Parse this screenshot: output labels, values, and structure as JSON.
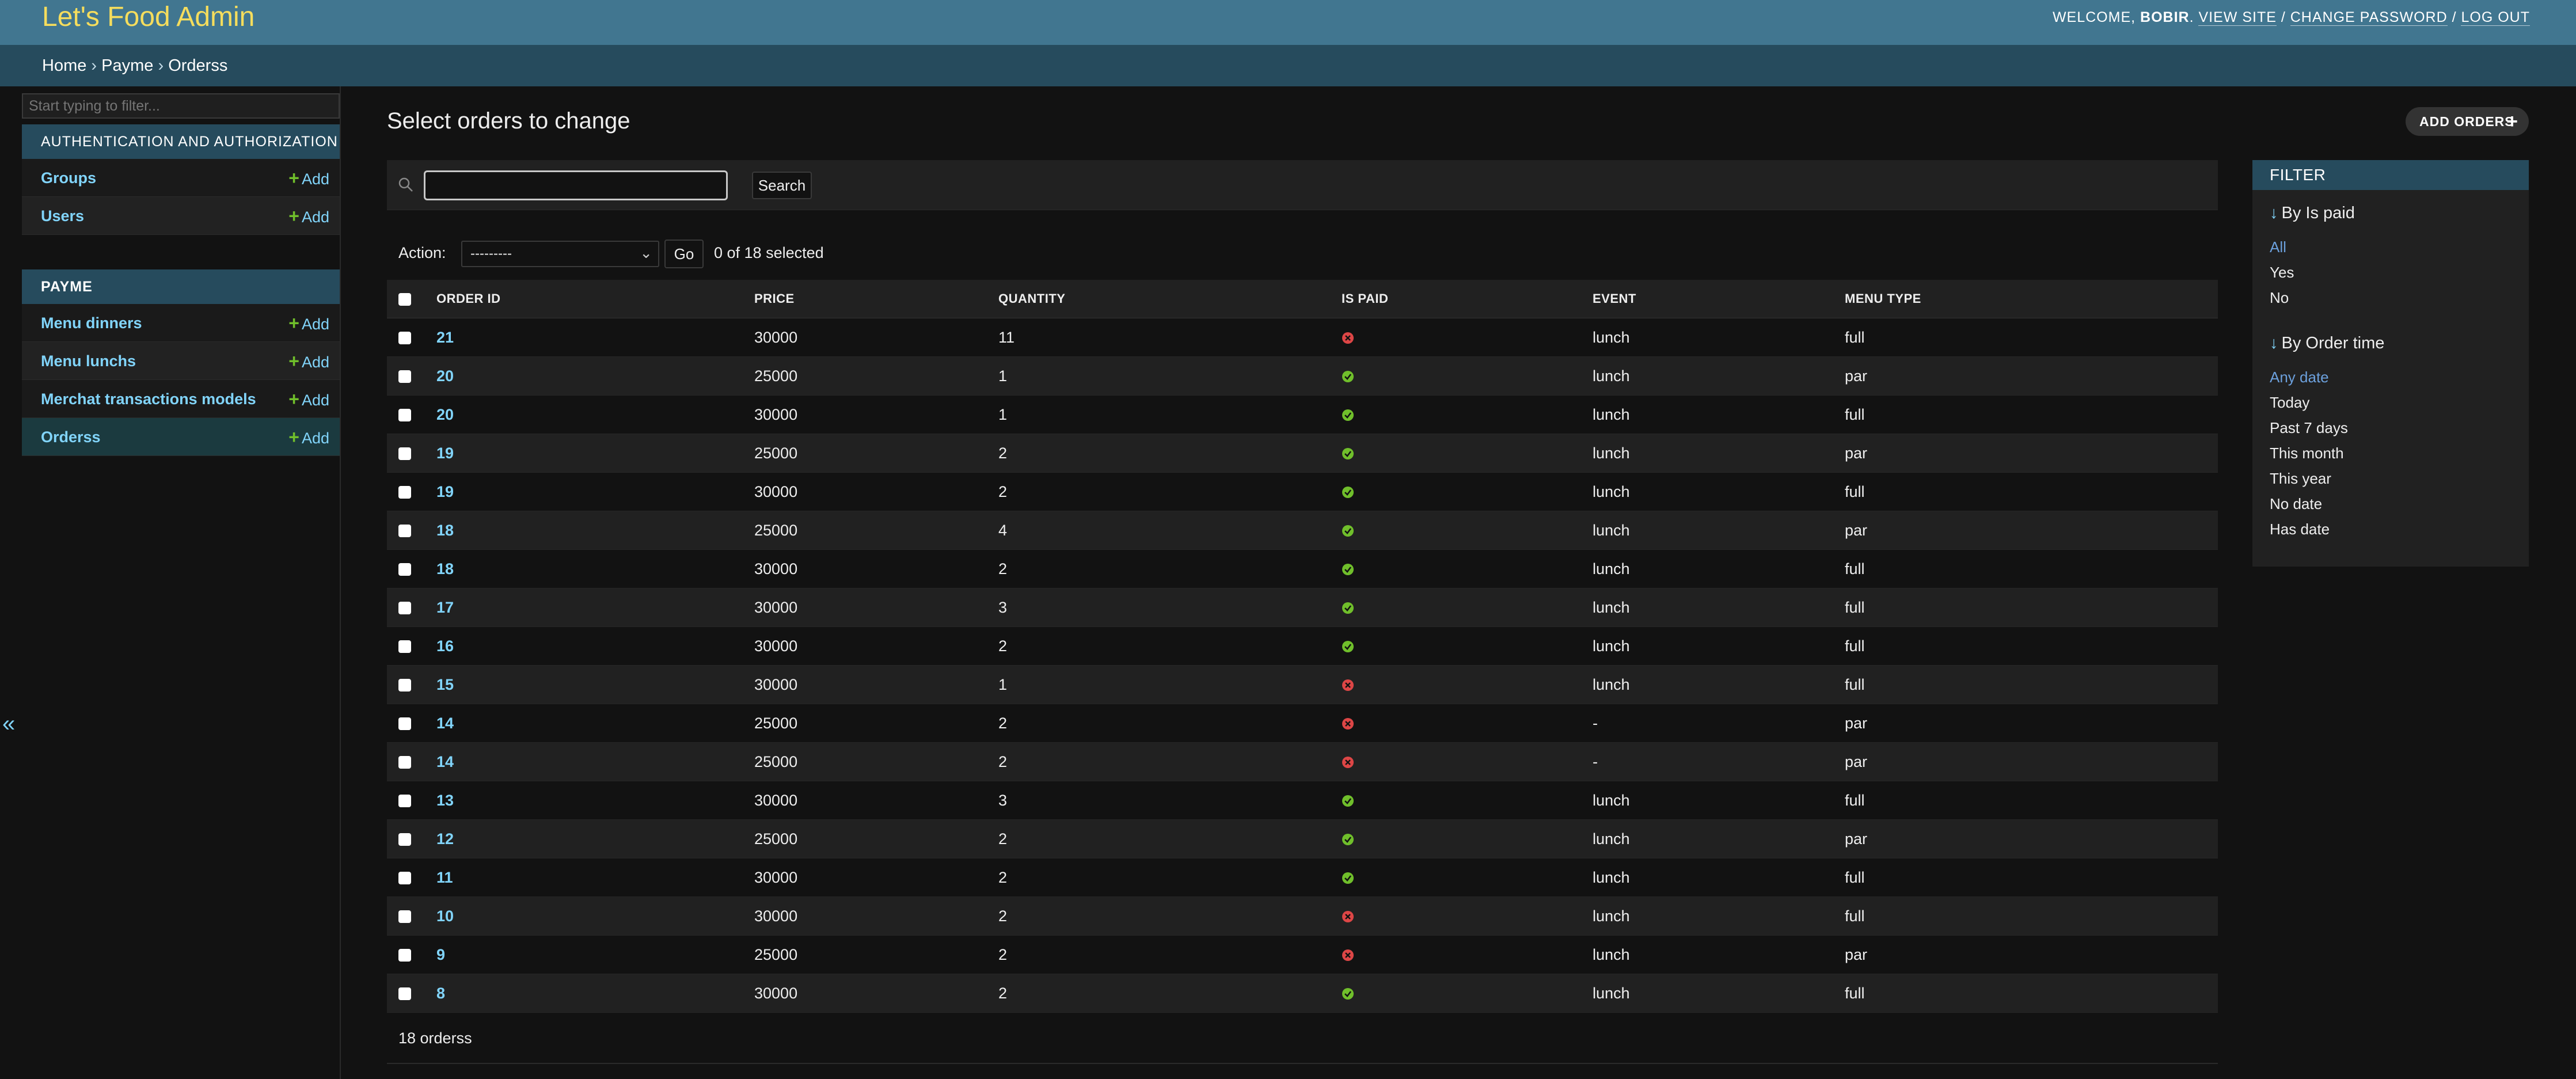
{
  "header": {
    "site_name": "Let's Food Admin",
    "welcome": "Welcome, ",
    "username": "BOBIR",
    "view_site": "View site",
    "change_password": "Change password",
    "log_out": "Log out",
    "sep": " / "
  },
  "breadcrumbs": {
    "home": "Home",
    "app": "Payme",
    "current": "Orderss",
    "sep": " › "
  },
  "sidebar": {
    "filter_placeholder": "Start typing to filter...",
    "collapse_glyph": "«",
    "add_label": "Add",
    "modules": [
      {
        "caption": "Authentication and Authorization",
        "items": [
          {
            "label": "Groups"
          },
          {
            "label": "Users"
          }
        ]
      },
      {
        "caption": "Payme",
        "items": [
          {
            "label": "Menu dinners"
          },
          {
            "label": "Menu lunchs"
          },
          {
            "label": "Merchat transactions models"
          },
          {
            "label": "Orderss"
          }
        ]
      }
    ]
  },
  "content": {
    "title": "Select orders to change",
    "add_button": "Add orders",
    "search_button": "Search",
    "action_label": "Action:",
    "action_selected": "---------",
    "go_button": "Go",
    "selected_count": "0 of 18 selected",
    "paginator": "18 orderss"
  },
  "table": {
    "columns": [
      "Order id",
      "Price",
      "Quantity",
      "Is paid",
      "Event",
      "Menu type"
    ],
    "rows": [
      {
        "id": "21",
        "price": "30000",
        "quantity": "11",
        "paid": false,
        "event": "lunch",
        "menu": "full"
      },
      {
        "id": "20",
        "price": "25000",
        "quantity": "1",
        "paid": true,
        "event": "lunch",
        "menu": "par"
      },
      {
        "id": "20",
        "price": "30000",
        "quantity": "1",
        "paid": true,
        "event": "lunch",
        "menu": "full"
      },
      {
        "id": "19",
        "price": "25000",
        "quantity": "2",
        "paid": true,
        "event": "lunch",
        "menu": "par"
      },
      {
        "id": "19",
        "price": "30000",
        "quantity": "2",
        "paid": true,
        "event": "lunch",
        "menu": "full"
      },
      {
        "id": "18",
        "price": "25000",
        "quantity": "4",
        "paid": true,
        "event": "lunch",
        "menu": "par"
      },
      {
        "id": "18",
        "price": "30000",
        "quantity": "2",
        "paid": true,
        "event": "lunch",
        "menu": "full"
      },
      {
        "id": "17",
        "price": "30000",
        "quantity": "3",
        "paid": true,
        "event": "lunch",
        "menu": "full"
      },
      {
        "id": "16",
        "price": "30000",
        "quantity": "2",
        "paid": true,
        "event": "lunch",
        "menu": "full"
      },
      {
        "id": "15",
        "price": "30000",
        "quantity": "1",
        "paid": false,
        "event": "lunch",
        "menu": "full"
      },
      {
        "id": "14",
        "price": "25000",
        "quantity": "2",
        "paid": false,
        "event": "-",
        "menu": "par"
      },
      {
        "id": "14",
        "price": "25000",
        "quantity": "2",
        "paid": false,
        "event": "-",
        "menu": "par"
      },
      {
        "id": "13",
        "price": "30000",
        "quantity": "3",
        "paid": true,
        "event": "lunch",
        "menu": "full"
      },
      {
        "id": "12",
        "price": "25000",
        "quantity": "2",
        "paid": true,
        "event": "lunch",
        "menu": "par"
      },
      {
        "id": "11",
        "price": "30000",
        "quantity": "2",
        "paid": true,
        "event": "lunch",
        "menu": "full"
      },
      {
        "id": "10",
        "price": "30000",
        "quantity": "2",
        "paid": false,
        "event": "lunch",
        "menu": "full"
      },
      {
        "id": "9",
        "price": "25000",
        "quantity": "2",
        "paid": false,
        "event": "lunch",
        "menu": "par"
      },
      {
        "id": "8",
        "price": "30000",
        "quantity": "2",
        "paid": true,
        "event": "lunch",
        "menu": "full"
      }
    ]
  },
  "filter": {
    "heading": "Filter",
    "arrow_glyph": "↓",
    "groups": [
      {
        "title": "By Is paid",
        "options": [
          "All",
          "Yes",
          "No"
        ],
        "selected": "All"
      },
      {
        "title": "By Order time",
        "options": [
          "Any date",
          "Today",
          "Past 7 days",
          "This month",
          "This year",
          "No date",
          "Has date"
        ],
        "selected": "Any date"
      }
    ]
  },
  "colors": {
    "paid_yes": "#70bf2b",
    "paid_no": "#dd4646"
  }
}
